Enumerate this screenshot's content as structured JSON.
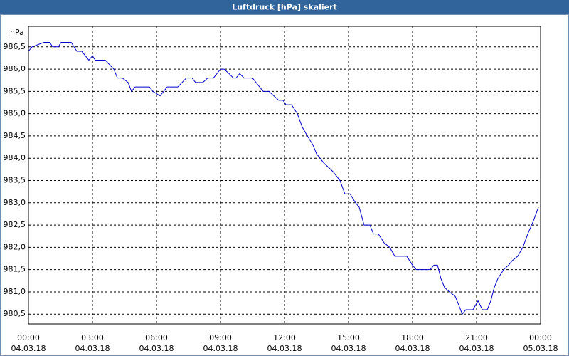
{
  "chart_data": {
    "type": "line",
    "title": "Luftdruck [hPa] skaliert",
    "ylabel": "hPa",
    "color": "#0000cc",
    "grid": true,
    "x": [
      0,
      0.17,
      0.73,
      1,
      1.13,
      1.4,
      1.53,
      2,
      2.27,
      2.5,
      2.83,
      3,
      3.13,
      3.6,
      4,
      4.17,
      4.4,
      4.67,
      4.83,
      5,
      5.67,
      5.83,
      6.17,
      6.5,
      7,
      7.4,
      7.67,
      7.83,
      8.17,
      8.4,
      8.67,
      9,
      9.17,
      9.4,
      9.6,
      9.73,
      9.9,
      10.1,
      10.5,
      11,
      11.27,
      11.5,
      11.73,
      11.93,
      12.07,
      12.33,
      12.6,
      12.83,
      13.07,
      13.33,
      13.5,
      13.83,
      14.27,
      14.6,
      14.83,
      15.07,
      15.33,
      15.5,
      15.73,
      16,
      16.17,
      16.4,
      16.67,
      16.93,
      17.17,
      17.73,
      18,
      18.17,
      18.83,
      19,
      19.17,
      19.33,
      19.5,
      19.73,
      20,
      20.17,
      20.33,
      20.5,
      20.83,
      21.07,
      21.27,
      21.5,
      21.67,
      21.83,
      22,
      22.27,
      22.5,
      22.67,
      22.93,
      23.17,
      23.4,
      23.67,
      23.9
    ],
    "values": [
      986.4,
      986.5,
      986.6,
      986.6,
      986.5,
      986.5,
      986.6,
      986.6,
      986.4,
      986.4,
      986.2,
      986.3,
      986.2,
      986.2,
      986.0,
      985.8,
      985.8,
      985.7,
      985.5,
      985.6,
      985.6,
      985.5,
      985.4,
      985.6,
      985.6,
      985.8,
      985.8,
      985.7,
      985.7,
      985.8,
      985.8,
      986.0,
      986.0,
      985.9,
      985.8,
      985.8,
      985.9,
      985.8,
      985.8,
      985.5,
      985.5,
      985.4,
      985.3,
      985.3,
      985.2,
      985.2,
      985.0,
      984.7,
      984.5,
      984.3,
      984.1,
      983.9,
      983.7,
      983.5,
      983.2,
      983.2,
      983.0,
      982.9,
      982.5,
      982.5,
      982.3,
      982.3,
      982.1,
      982.0,
      981.8,
      981.8,
      981.6,
      981.5,
      981.5,
      981.6,
      981.6,
      981.3,
      981.1,
      981.0,
      980.9,
      980.7,
      980.5,
      980.6,
      980.6,
      980.8,
      980.6,
      980.6,
      980.8,
      981.1,
      981.3,
      981.5,
      981.6,
      981.7,
      981.8,
      982.0,
      982.3,
      982.6,
      982.9
    ],
    "xlim": [
      0,
      24
    ],
    "xticks": [
      {
        "value": 0,
        "label": "00:00",
        "sublabel": "04.03.18"
      },
      {
        "value": 3,
        "label": "03:00",
        "sublabel": "04.03.18"
      },
      {
        "value": 6,
        "label": "06:00",
        "sublabel": "04.03.18"
      },
      {
        "value": 9,
        "label": "09:00",
        "sublabel": "04.03.18"
      },
      {
        "value": 12,
        "label": "12:00",
        "sublabel": "04.03.18"
      },
      {
        "value": 15,
        "label": "15:00",
        "sublabel": "04.03.18"
      },
      {
        "value": 18,
        "label": "18:00",
        "sublabel": "04.03.18"
      },
      {
        "value": 21,
        "label": "21:00",
        "sublabel": "04.03.18"
      },
      {
        "value": 24,
        "label": "00:00",
        "sublabel": "05.03.18"
      }
    ],
    "ylim": [
      980.28,
      986.96
    ],
    "yticks": [
      {
        "value": 980.5,
        "label": "980,5"
      },
      {
        "value": 981,
        "label": "981,0"
      },
      {
        "value": 981.5,
        "label": "981,5"
      },
      {
        "value": 982,
        "label": "982,0"
      },
      {
        "value": 982.5,
        "label": "982,5"
      },
      {
        "value": 983,
        "label": "983,0"
      },
      {
        "value": 983.5,
        "label": "983,5"
      },
      {
        "value": 984,
        "label": "984,0"
      },
      {
        "value": 984.5,
        "label": "984,5"
      },
      {
        "value": 985,
        "label": "985,0"
      },
      {
        "value": 985.5,
        "label": "985,5"
      },
      {
        "value": 986,
        "label": "986,0"
      },
      {
        "value": 986.5,
        "label": "986,5"
      }
    ]
  }
}
